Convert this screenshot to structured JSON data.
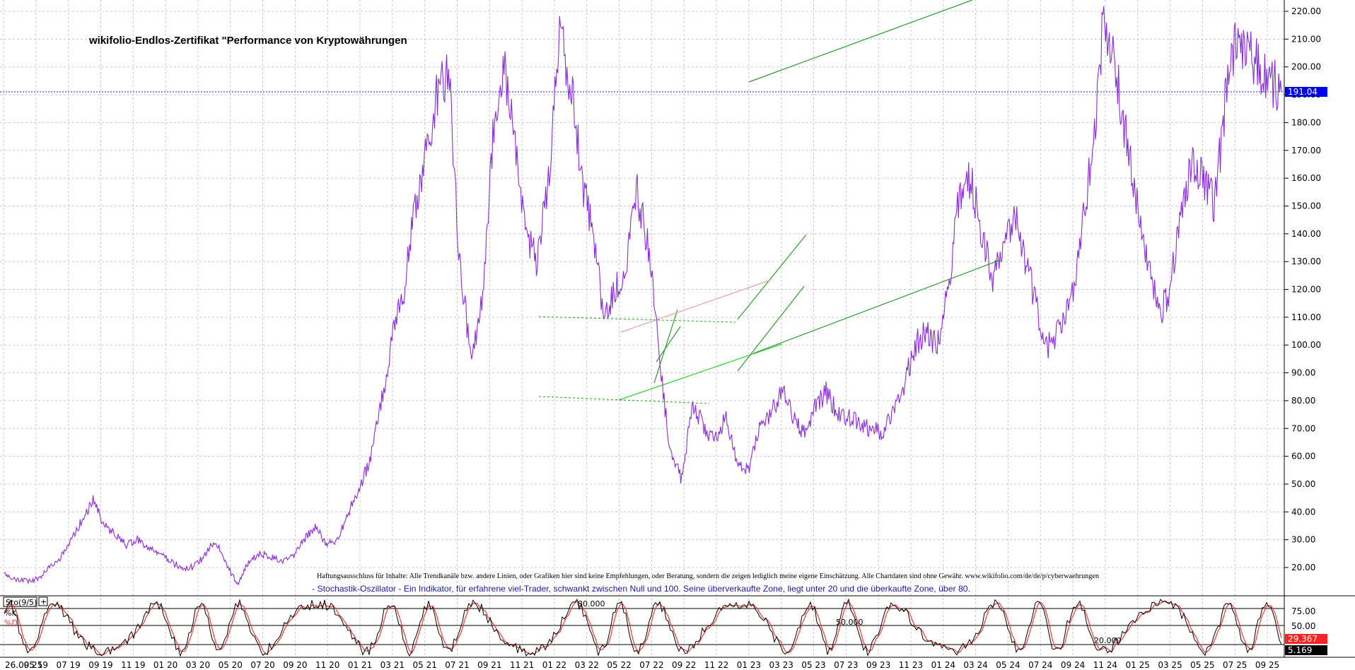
{
  "chart_data": [
    {
      "type": "line",
      "title": "wikifolio-Endlos-Zertifikat \"Performance von Kryptowährungen",
      "y_ticks": [
        "220.00",
        "210.00",
        "200.00",
        "190.00",
        "180.00",
        "170.00",
        "160.00",
        "150.00",
        "140.00",
        "130.00",
        "120.00",
        "110.00",
        "100.00",
        "90.00",
        "80.00",
        "70.00",
        "60.00",
        "50.00",
        "40.00",
        "30.00",
        "20.00"
      ],
      "ylim": [
        13,
        222
      ],
      "grid": true,
      "x_ticks": [
        "26.09.25",
        "05 19",
        "07 19",
        "09 19",
        "11 19",
        "01 20",
        "03 20",
        "05 20",
        "07 20",
        "09 20",
        "11 20",
        "01 21",
        "03 21",
        "05 21",
        "07 21",
        "09 21",
        "11 21",
        "01 22",
        "03 22",
        "05 22",
        "07 22",
        "09 22",
        "11 22",
        "01 23",
        "03 23",
        "05 23",
        "07 23",
        "09 23",
        "11 23",
        "01 24",
        "03 24",
        "05 24",
        "07 24",
        "09 24",
        "11 24",
        "01 25",
        "03 25",
        "05 25",
        "07 25",
        "09 25"
      ],
      "current_value_label": "191.04",
      "current_value": 191.04,
      "series": [
        {
          "color": "#8a2be2",
          "x": [
            0,
            0.5,
            1,
            1.5,
            2,
            2.5,
            3,
            3.5,
            4,
            4.5,
            5,
            5.5,
            6,
            6.5,
            7,
            7.5,
            8,
            8.5,
            9,
            9.5,
            10,
            10.5,
            11,
            11.5,
            12,
            12.5,
            13,
            13.5,
            14,
            14.5,
            15,
            15.5,
            16,
            16.5,
            17,
            17.5,
            18,
            18.5,
            19,
            19.5,
            20,
            20.5,
            21,
            21.5,
            22,
            22.5,
            23,
            23.5,
            24,
            24.5,
            25,
            25.5,
            26,
            26.5,
            27,
            27.5,
            28,
            28.5,
            29,
            29.5,
            30,
            30.5,
            31,
            31.5,
            32,
            32.5,
            33,
            33.5,
            34,
            34.5,
            35,
            35.5,
            36,
            36.5,
            37,
            37.5,
            38,
            38.5,
            39,
            39.5
          ],
          "y": [
            18,
            16,
            15,
            16,
            20,
            23,
            30,
            37,
            44,
            35,
            32,
            28,
            30,
            27,
            25,
            22,
            20,
            20,
            24,
            30,
            21,
            14,
            22,
            25,
            24,
            22,
            24,
            30,
            35,
            28,
            30,
            40,
            48,
            60,
            80,
            105,
            120,
            150,
            170,
            190,
            200,
            130,
            95,
            115,
            175,
            200,
            175,
            140,
            130,
            160,
            210,
            195,
            160,
            140,
            110,
            120,
            130,
            155,
            135,
            95,
            60,
            52,
            80,
            70,
            65,
            75,
            58,
            55,
            70,
            75,
            84,
            75,
            68,
            78,
            83,
            76,
            74,
            72,
            70,
            68
          ],
          "y_tail": [
            75,
            85,
            100,
            105,
            100,
            120,
            155,
            160,
            140,
            125,
            135,
            150,
            130,
            112,
            100,
            105,
            115,
            140,
            170,
            218,
            200,
            175,
            150,
            130,
            110,
            120,
            150,
            165,
            160,
            150,
            190,
            210,
            205,
            200,
            195,
            191.04
          ],
          "x_tail": [
            40,
            40.5,
            41,
            41.5,
            42,
            42.5,
            43,
            43.5,
            44,
            44.5,
            45,
            45.5,
            46,
            46.5,
            47,
            47.5,
            48,
            48.5,
            49,
            49.5,
            50,
            50.5,
            51,
            51.5,
            52,
            52.5,
            53,
            53.5,
            54,
            54.5,
            55,
            55.5,
            56,
            56.5,
            57,
            57.5
          ]
        }
      ],
      "trendlines": [
        {
          "color": "#2e9b2e",
          "from": [
            1059,
            116
          ],
          "to": [
            1375,
            0
          ]
        },
        {
          "color": "#2e9b2e",
          "from": [
            1065,
            500
          ],
          "to": [
            1414,
            368
          ]
        },
        {
          "color": "#33cc33",
          "from": [
            875,
            566
          ],
          "to": [
            1105,
            487
          ]
        },
        {
          "color": "#2e9b2e",
          "from": [
            925,
            542
          ],
          "to": [
            958,
            438
          ]
        },
        {
          "color": "#2e9b2e",
          "from": [
            928,
            512
          ],
          "to": [
            962,
            462
          ]
        },
        {
          "color": "#2e9b2e",
          "from": [
            1043,
            452
          ],
          "to": [
            1140,
            332
          ]
        },
        {
          "color": "#2e9b2e",
          "from": [
            1043,
            525
          ],
          "to": [
            1137,
            405
          ]
        },
        {
          "color": "#e8a0a0",
          "from": [
            878,
            470
          ],
          "to": [
            1090,
            396
          ]
        }
      ],
      "channel_dashed": [
        {
          "color": "#2e9b2e",
          "from": [
            762,
            448
          ],
          "to": [
            1040,
            456
          ]
        },
        {
          "color": "#2e9b2e",
          "from": [
            762,
            561
          ],
          "to": [
            1003,
            571
          ]
        }
      ]
    },
    {
      "type": "line",
      "title": "Sto(9/5)",
      "legend": [
        "%K",
        "%D"
      ],
      "legend_colors": [
        "#000000",
        "#ff3333"
      ],
      "levels": [
        "80.000",
        "50.000",
        "20.000"
      ],
      "y_ticks": [
        "75.00",
        "50.00"
      ],
      "ylim": [
        0,
        100
      ],
      "last_values": [
        "29.367",
        "5.169"
      ]
    }
  ],
  "header": {
    "disclaimer": "Haftungsausschluss für Inhalte: Alle Trendkanäle bzw. andere Linien, oder Grafiken hier sind keine Empfehlungen, oder Beratung, sondern die zeigen lediglich meine eigene Einschätzung. Alle Chartdaten sind ohne Gewähr. www.wikifolio.com/de/de/p/cyberwaehrungen",
    "indicator_note": "- Stochastik-Oszillator - Ein Indikator, für erfahrene viel-Trader, schwankt zwischen Null und 100. Seine überverkaufte Zone, liegt unter 20 und die überkaufte Zone, über 80."
  },
  "colors": {
    "price_line": "#8a2be2",
    "current_value_bg": "#0000ee",
    "stoch_k": "#000000",
    "stoch_d": "#ff3333",
    "grid": "#c8c8c8"
  }
}
